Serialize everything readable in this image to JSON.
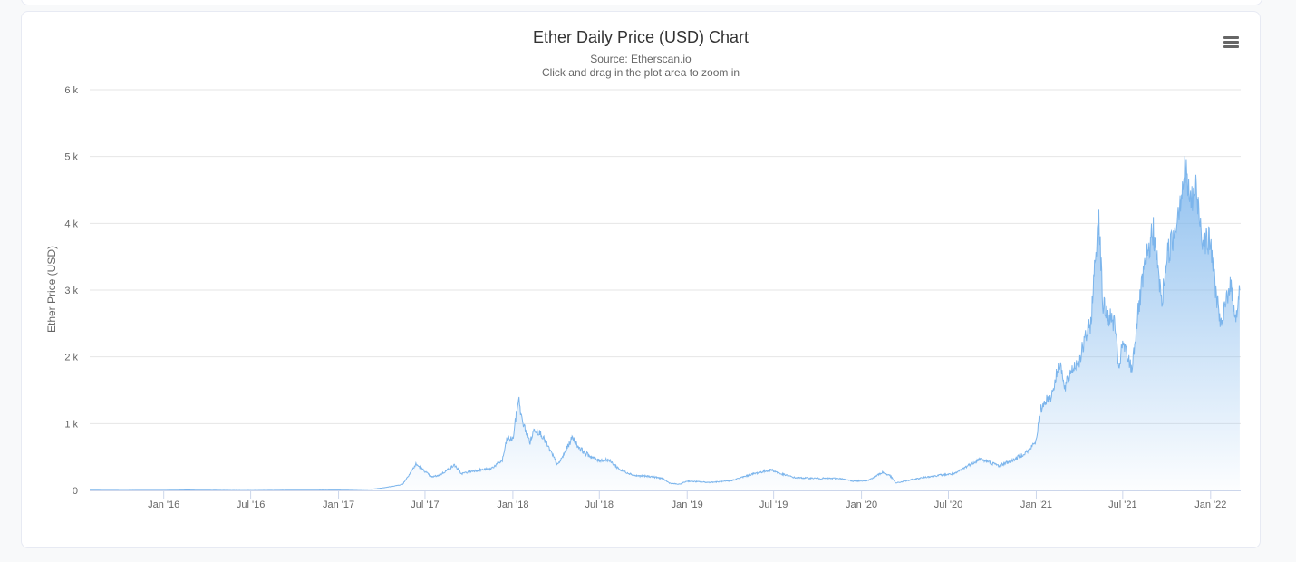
{
  "chart_data": {
    "type": "area",
    "title": "Ether Daily Price (USD) Chart",
    "subtitle": "Source: Etherscan.io",
    "hint": "Click and drag in the plot area to zoom in",
    "xlabel": "",
    "ylabel": "Ether Price (USD)",
    "ylim": [
      0,
      6000
    ],
    "xlim": [
      "2015-07-30",
      "2022-03-05"
    ],
    "y_ticks": [
      {
        "value": 0,
        "label": "0"
      },
      {
        "value": 1000,
        "label": "1 k"
      },
      {
        "value": 2000,
        "label": "2 k"
      },
      {
        "value": 3000,
        "label": "3 k"
      },
      {
        "value": 4000,
        "label": "4 k"
      },
      {
        "value": 5000,
        "label": "5 k"
      },
      {
        "value": 6000,
        "label": "6 k"
      }
    ],
    "x_ticks": [
      {
        "date": "2016-01-01",
        "label": "Jan '16"
      },
      {
        "date": "2016-07-01",
        "label": "Jul '16"
      },
      {
        "date": "2017-01-01",
        "label": "Jan '17"
      },
      {
        "date": "2017-07-01",
        "label": "Jul '17"
      },
      {
        "date": "2018-01-01",
        "label": "Jan '18"
      },
      {
        "date": "2018-07-01",
        "label": "Jul '18"
      },
      {
        "date": "2019-01-01",
        "label": "Jan '19"
      },
      {
        "date": "2019-07-01",
        "label": "Jul '19"
      },
      {
        "date": "2020-01-01",
        "label": "Jan '20"
      },
      {
        "date": "2020-07-01",
        "label": "Jul '20"
      },
      {
        "date": "2021-01-01",
        "label": "Jan '21"
      },
      {
        "date": "2021-07-01",
        "label": "Jul '21"
      },
      {
        "date": "2022-01-01",
        "label": "Jan '22"
      }
    ],
    "grid": true,
    "legend": "none",
    "colors": {
      "line": "#7cb5ec",
      "fill_top": "#7cb5ec",
      "grid": "#e6e6e6",
      "axis": "#ccd6eb"
    },
    "series": [
      {
        "x": [
          "2015-07-30",
          "2015-10-01",
          "2016-01-01",
          "2016-03-15",
          "2016-06-15",
          "2016-09-01",
          "2017-01-01",
          "2017-03-15",
          "2017-04-15",
          "2017-05-15",
          "2017-06-12",
          "2017-06-20",
          "2017-07-15",
          "2017-08-01",
          "2017-09-01",
          "2017-09-15",
          "2017-10-15",
          "2017-11-15",
          "2017-12-10",
          "2017-12-20",
          "2018-01-01",
          "2018-01-13",
          "2018-01-20",
          "2018-02-06",
          "2018-02-15",
          "2018-03-01",
          "2018-04-05",
          "2018-04-15",
          "2018-05-06",
          "2018-05-15",
          "2018-06-01",
          "2018-06-28",
          "2018-07-20",
          "2018-08-15",
          "2018-09-15",
          "2018-10-15",
          "2018-11-10",
          "2018-11-25",
          "2018-12-15",
          "2019-01-01",
          "2019-02-15",
          "2019-04-01",
          "2019-05-15",
          "2019-06-26",
          "2019-07-15",
          "2019-08-15",
          "2019-10-01",
          "2019-11-15",
          "2019-12-15",
          "2020-01-15",
          "2020-02-14",
          "2020-03-01",
          "2020-03-13",
          "2020-04-15",
          "2020-05-15",
          "2020-06-15",
          "2020-07-15",
          "2020-08-15",
          "2020-09-05",
          "2020-10-15",
          "2020-11-15",
          "2020-12-15",
          "2020-12-31",
          "2021-01-10",
          "2021-01-20",
          "2021-02-01",
          "2021-02-20",
          "2021-03-01",
          "2021-03-15",
          "2021-04-01",
          "2021-04-15",
          "2021-04-25",
          "2021-05-05",
          "2021-05-12",
          "2021-05-20",
          "2021-05-25",
          "2021-06-01",
          "2021-06-15",
          "2021-06-22",
          "2021-07-01",
          "2021-07-20",
          "2021-08-01",
          "2021-08-15",
          "2021-09-03",
          "2021-09-21",
          "2021-10-01",
          "2021-10-15",
          "2021-11-09",
          "2021-11-20",
          "2021-12-01",
          "2021-12-15",
          "2022-01-01",
          "2022-01-10",
          "2022-01-24",
          "2022-02-01",
          "2022-02-10",
          "2022-02-24",
          "2022-03-03"
        ],
        "y": [
          2.8,
          0.6,
          0.95,
          10,
          15,
          12,
          8,
          20,
          50,
          90,
          390,
          350,
          200,
          230,
          380,
          250,
          300,
          320,
          450,
          780,
          760,
          1390,
          1050,
          720,
          920,
          850,
          380,
          500,
          800,
          680,
          560,
          450,
          460,
          300,
          220,
          210,
          180,
          110,
          90,
          140,
          120,
          140,
          240,
          310,
          250,
          190,
          180,
          180,
          140,
          150,
          270,
          220,
          110,
          160,
          200,
          230,
          250,
          390,
          470,
          370,
          460,
          590,
          730,
          1200,
          1350,
          1400,
          1950,
          1500,
          1800,
          1950,
          2300,
          2500,
          3500,
          4170,
          2800,
          2700,
          2600,
          2500,
          1800,
          2200,
          1810,
          2600,
          3300,
          3900,
          2800,
          3500,
          3800,
          4800,
          4300,
          4500,
          3800,
          3700,
          3100,
          2400,
          2800,
          3100,
          2600,
          3000
        ]
      }
    ]
  }
}
